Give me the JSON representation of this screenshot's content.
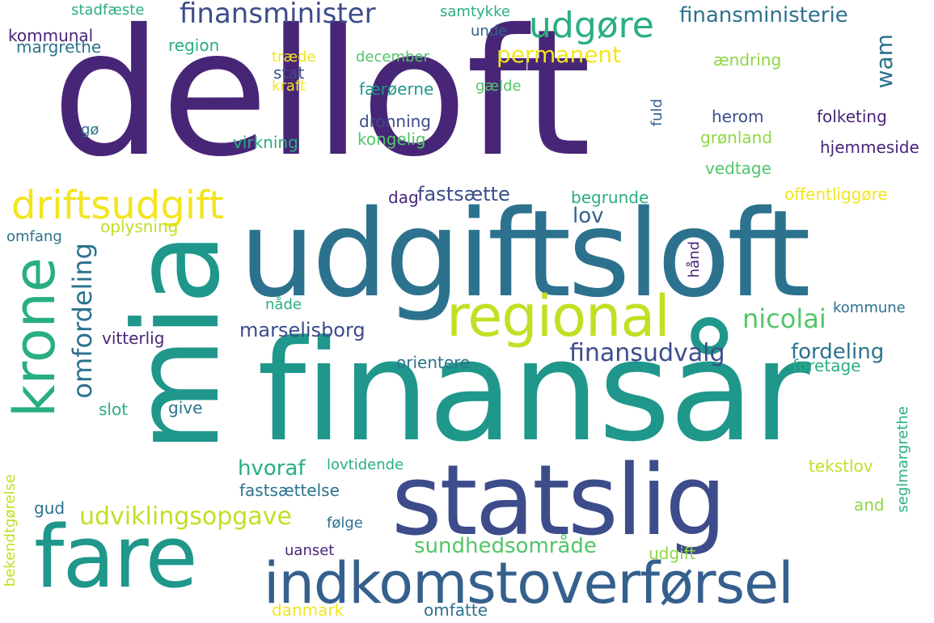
{
  "colors": {
    "background": "#ffffff",
    "dark_purple": "#482677",
    "indigo": "#3d4c8a",
    "blue": "#35608d",
    "teal_blue": "#2c728e",
    "teal": "#1f978b",
    "green_teal": "#29af7f",
    "green": "#52c569",
    "lime": "#8fd744",
    "yellow_green": "#c2df23",
    "yellow": "#f3e51e"
  },
  "words": {
    "delloft": "delloft",
    "udgiftsloft": "udgiftsloft",
    "finansaar": "finansår",
    "mia": "mia",
    "statslig": "statslig",
    "fare": "fare",
    "indkomstoverfoersel": "indkomstoverførsel",
    "regional": "regional",
    "krone": "krone",
    "driftsudgift": "driftsudgift",
    "omfordeling": "omfordeling",
    "finansminister": "finansminister",
    "udgoere": "udgøre",
    "finansministerie": "finansministerie",
    "permanent": "permanent",
    "wam": "wam",
    "faestsaette": "fastsætte",
    "lov": "lov",
    "nicolai": "nicolai",
    "marselisborg": "marselisborg",
    "finansudvalg": "finansudvalg",
    "fordeling": "fordeling",
    "foretage": "foretage",
    "hvoraf": "hvoraf",
    "udviklingsopgave": "udviklingsopgave",
    "sundhedsomraade": "sundhedsområde",
    "stadfaeste": "stadfæste",
    "samtykke": "samtykke",
    "kommunal": "kommunal",
    "unde": "unde",
    "margrethe": "margrethe",
    "region": "region",
    "traede": "træde",
    "december": "december",
    "stat": "stat",
    "kraft": "kraft",
    "faeroeerne": "færøerne",
    "gaelde": "gælde",
    "aendring": "ændring",
    "dronning": "dronning",
    "kongelig": "kongelig",
    "go": "gø",
    "virkning": "virkning",
    "fuld": "fuld",
    "herom": "herom",
    "folketing": "folketing",
    "groenland": "grønland",
    "hjemmeside": "hjemmeside",
    "vedtage": "vedtage",
    "dag": "dag",
    "begrunde": "begrunde",
    "offentliggoere": "offentliggøre",
    "oplysning": "oplysning",
    "omfang": "omfang",
    "haand": "hånd",
    "naade": "nåde",
    "kommune": "kommune",
    "vitterlig": "vitterlig",
    "orientere": "orientere",
    "slot": "slot",
    "give": "give",
    "seglmargrethe": "seglmargrethe",
    "lovtidende": "lovtidende",
    "tekstlov": "tekstlov",
    "fastsaettelse": "fastsættelse",
    "bekendtgoerelse": "bekendtgørelse",
    "gud": "gud",
    "foelge": "følge",
    "and": "and",
    "uanset": "uanset",
    "udgift": "udgift",
    "danmark": "danmark",
    "omfatte": "omfatte"
  }
}
